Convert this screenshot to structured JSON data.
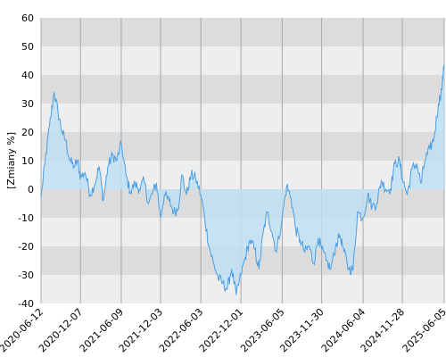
{
  "chart_data": {
    "type": "area",
    "ylabel": "[Zmiany %]",
    "ylim": [
      -40,
      60
    ],
    "y_ticks": [
      -40,
      -30,
      -20,
      -10,
      0,
      10,
      20,
      30,
      40,
      50,
      60
    ],
    "x_tick_labels": [
      "2020-06-12",
      "2020-12-07",
      "2021-06-09",
      "2021-12-03",
      "2022-06-03",
      "2022-12-01",
      "2023-06-05",
      "2023-11-30",
      "2024-06-04",
      "2024-11-28",
      "2025-06-05"
    ],
    "grid": true,
    "band_colors": [
      "#dcdcdc",
      "#eeeeee"
    ],
    "line_color": "#4a9fe6",
    "fill_color": "#bfe0f3",
    "series": [
      {
        "x": [
          "2020-06-12",
          "2020-07-01",
          "2020-07-20",
          "2020-08-10",
          "2020-08-28",
          "2020-09-15",
          "2020-10-01",
          "2020-10-20",
          "2020-11-09",
          "2020-11-25",
          "2020-12-07",
          "2020-12-28",
          "2021-01-20",
          "2021-02-10",
          "2021-03-01",
          "2021-03-20",
          "2021-04-10",
          "2021-04-30",
          "2021-05-20",
          "2021-06-09",
          "2021-06-30",
          "2021-07-20",
          "2021-08-10",
          "2021-08-30",
          "2021-09-20",
          "2021-10-10",
          "2021-10-30",
          "2021-11-15",
          "2021-12-03",
          "2021-12-20",
          "2022-01-10",
          "2022-02-01",
          "2022-02-20",
          "2022-03-10",
          "2022-03-30",
          "2022-04-20",
          "2022-05-10",
          "2022-06-03",
          "2022-06-20",
          "2022-07-10",
          "2022-07-30",
          "2022-08-20",
          "2022-09-10",
          "2022-09-30",
          "2022-10-20",
          "2022-11-10",
          "2022-12-01",
          "2022-12-20",
          "2023-01-10",
          "2023-02-01",
          "2023-02-20",
          "2023-03-10",
          "2023-03-30",
          "2023-04-20",
          "2023-05-10",
          "2023-06-05",
          "2023-06-25",
          "2023-07-15",
          "2023-08-05",
          "2023-08-25",
          "2023-09-15",
          "2023-10-05",
          "2023-10-25",
          "2023-11-15",
          "2023-11-30",
          "2023-12-20",
          "2024-01-10",
          "2024-02-01",
          "2024-02-20",
          "2024-03-10",
          "2024-04-01",
          "2024-04-20",
          "2024-05-10",
          "2024-06-04",
          "2024-06-25",
          "2024-07-15",
          "2024-08-05",
          "2024-08-25",
          "2024-09-15",
          "2024-10-05",
          "2024-10-25",
          "2024-11-15",
          "2024-11-28",
          "2024-12-20",
          "2025-01-10",
          "2025-02-01",
          "2025-02-20",
          "2025-03-10",
          "2025-04-01",
          "2025-04-20",
          "2025-05-10",
          "2025-05-25",
          "2025-06-05"
        ],
        "y": [
          -3,
          10,
          22,
          34,
          27,
          20,
          17,
          10,
          8,
          10,
          4,
          6,
          -2,
          2,
          8,
          -4,
          8,
          12,
          10,
          16,
          5,
          -1,
          2,
          0,
          3,
          -5,
          -1,
          2,
          -10,
          -2,
          -4,
          -8,
          -7,
          5,
          -2,
          5,
          4,
          -2,
          -10,
          -20,
          -26,
          -31,
          -33,
          -35,
          -28,
          -37,
          -30,
          -24,
          -18,
          -21,
          -28,
          -16,
          -8,
          -15,
          -22,
          -10,
          1,
          -3,
          -14,
          -18,
          -22,
          -20,
          -26,
          -17,
          -21,
          -25,
          -28,
          -20,
          -16,
          -22,
          -28,
          -28,
          -8,
          -10,
          -2,
          -6,
          -5,
          3,
          0,
          0,
          9,
          10,
          4,
          -2,
          7,
          9,
          2,
          10,
          14,
          18,
          30,
          35,
          44
        ]
      }
    ]
  }
}
